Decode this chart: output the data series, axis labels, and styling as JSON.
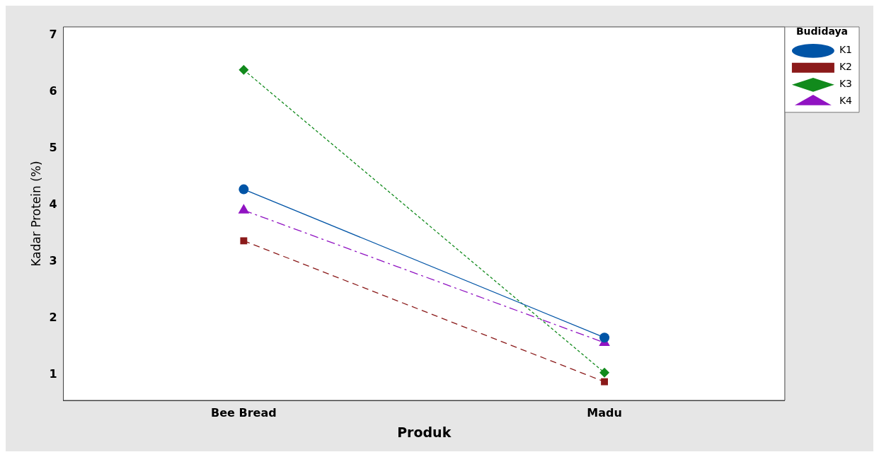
{
  "chart_data": {
    "type": "line",
    "xlabel": "Produk",
    "ylabel": "Kadar Protein (%)",
    "legend_title": "Budidaya",
    "legend": "top right",
    "grid": false,
    "categories": [
      "Bee Bread",
      "Madu"
    ],
    "ylim": [
      0.55,
      7.15
    ],
    "yticks": [
      1,
      2,
      3,
      4,
      5,
      6,
      7
    ],
    "series": [
      {
        "name": "K1",
        "color": "#0054a6",
        "values": [
          4.28,
          1.66
        ],
        "marker": "circle",
        "line_style": "solid"
      },
      {
        "name": "K2",
        "color": "#8b1a1a",
        "values": [
          3.37,
          0.88
        ],
        "marker": "square",
        "line_style": "dashed"
      },
      {
        "name": "K3",
        "color": "#118a1c",
        "values": [
          6.39,
          1.04
        ],
        "marker": "diamond",
        "line_style": "dotted"
      },
      {
        "name": "K4",
        "color": "#9013c2",
        "values": [
          3.91,
          1.57
        ],
        "marker": "triangle",
        "line_style": "dashdot"
      }
    ]
  }
}
